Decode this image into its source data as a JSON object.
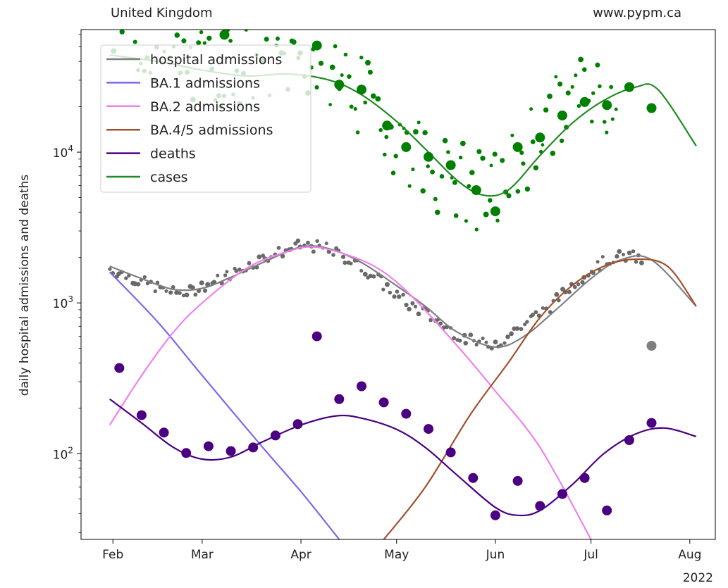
{
  "header": {
    "left_title": "United Kingdom",
    "right_title": "www.pypm.ca"
  },
  "chart_data": {
    "type": "line",
    "ylabel": "daily hospital admissions and deaths",
    "yscale": "log",
    "ylim": [
      27,
      65000
    ],
    "xlim": [
      "2022-01-22",
      "2022-08-09"
    ],
    "year_label": "2022",
    "x_ticks": [
      {
        "label": "Feb",
        "date": "2022-02-01"
      },
      {
        "label": "Mar",
        "date": "2022-03-01"
      },
      {
        "label": "Apr",
        "date": "2022-04-01"
      },
      {
        "label": "May",
        "date": "2022-05-01"
      },
      {
        "label": "Jun",
        "date": "2022-06-01"
      },
      {
        "label": "Jul",
        "date": "2022-07-01"
      },
      {
        "label": "Aug",
        "date": "2022-08-01"
      }
    ],
    "y_ticks": [
      {
        "base": "10",
        "exp": "2",
        "value": 100
      },
      {
        "base": "10",
        "exp": "3",
        "value": 1000
      },
      {
        "base": "10",
        "exp": "4",
        "value": 10000
      }
    ],
    "legend": {
      "position": "upper-left",
      "entries": [
        {
          "label": "hospital admissions",
          "color": "#808080"
        },
        {
          "label": "BA.1 admissions",
          "color": "#7b68ee"
        },
        {
          "label": "BA.2 admissions",
          "color": "#ee82ee"
        },
        {
          "label": "BA.4/5 admissions",
          "color": "#a0522d"
        },
        {
          "label": "deaths",
          "color": "#4b0082"
        },
        {
          "label": "cases",
          "color": "#228b22"
        }
      ]
    },
    "series": [
      {
        "name": "hospital admissions",
        "kind": "line",
        "color": "#808080",
        "points": [
          [
            "2022-01-31",
            1750
          ],
          [
            "2022-02-10",
            1450
          ],
          [
            "2022-02-20",
            1230
          ],
          [
            "2022-03-01",
            1250
          ],
          [
            "2022-03-10",
            1480
          ],
          [
            "2022-03-20",
            1850
          ],
          [
            "2022-04-01",
            2350
          ],
          [
            "2022-04-10",
            2280
          ],
          [
            "2022-04-20",
            1850
          ],
          [
            "2022-05-01",
            1300
          ],
          [
            "2022-05-10",
            950
          ],
          [
            "2022-05-20",
            640
          ],
          [
            "2022-06-01",
            510
          ],
          [
            "2022-06-10",
            600
          ],
          [
            "2022-06-20",
            900
          ],
          [
            "2022-07-01",
            1450
          ],
          [
            "2022-07-10",
            1920
          ],
          [
            "2022-07-20",
            1930
          ],
          [
            "2022-08-03",
            950
          ]
        ]
      },
      {
        "name": "BA.1 admissions",
        "kind": "line",
        "color": "#7b68ee",
        "points": [
          [
            "2022-01-31",
            1600
          ],
          [
            "2022-02-15",
            750
          ],
          [
            "2022-03-01",
            330
          ],
          [
            "2022-03-20",
            110
          ],
          [
            "2022-04-01",
            56
          ],
          [
            "2022-04-13",
            27
          ]
        ]
      },
      {
        "name": "BA.2 admissions",
        "kind": "line",
        "color": "#ee82ee",
        "points": [
          [
            "2022-01-31",
            155
          ],
          [
            "2022-02-10",
            330
          ],
          [
            "2022-02-20",
            640
          ],
          [
            "2022-03-01",
            1000
          ],
          [
            "2022-03-15",
            1700
          ],
          [
            "2022-03-28",
            2200
          ],
          [
            "2022-04-05",
            2350
          ],
          [
            "2022-04-15",
            2100
          ],
          [
            "2022-04-25",
            1700
          ],
          [
            "2022-05-05",
            1150
          ],
          [
            "2022-05-20",
            520
          ],
          [
            "2022-06-01",
            260
          ],
          [
            "2022-06-15",
            110
          ],
          [
            "2022-07-01",
            27
          ]
        ]
      },
      {
        "name": "BA.4/5 admissions",
        "kind": "line",
        "color": "#a0522d",
        "points": [
          [
            "2022-04-27",
            27
          ],
          [
            "2022-05-10",
            60
          ],
          [
            "2022-05-24",
            180
          ],
          [
            "2022-06-05",
            400
          ],
          [
            "2022-06-15",
            800
          ],
          [
            "2022-06-25",
            1300
          ],
          [
            "2022-07-05",
            1750
          ],
          [
            "2022-07-15",
            1950
          ],
          [
            "2022-07-25",
            1750
          ],
          [
            "2022-08-03",
            950
          ]
        ]
      },
      {
        "name": "deaths",
        "kind": "line",
        "color": "#4b0082",
        "points": [
          [
            "2022-01-31",
            230
          ],
          [
            "2022-02-10",
            160
          ],
          [
            "2022-02-20",
            110
          ],
          [
            "2022-03-01",
            92
          ],
          [
            "2022-03-10",
            95
          ],
          [
            "2022-03-20",
            120
          ],
          [
            "2022-04-01",
            155
          ],
          [
            "2022-04-12",
            178
          ],
          [
            "2022-04-20",
            172
          ],
          [
            "2022-05-01",
            145
          ],
          [
            "2022-05-10",
            110
          ],
          [
            "2022-05-20",
            72
          ],
          [
            "2022-06-01",
            44
          ],
          [
            "2022-06-08",
            39
          ],
          [
            "2022-06-15",
            42
          ],
          [
            "2022-06-25",
            62
          ],
          [
            "2022-07-05",
            100
          ],
          [
            "2022-07-15",
            135
          ],
          [
            "2022-07-24",
            148
          ],
          [
            "2022-08-03",
            130
          ]
        ]
      },
      {
        "name": "cases",
        "kind": "line",
        "color": "#228b22",
        "points": [
          [
            "2022-01-31",
            44000
          ],
          [
            "2022-02-15",
            40000
          ],
          [
            "2022-03-01",
            35000
          ],
          [
            "2022-03-15",
            32000
          ],
          [
            "2022-03-28",
            33000
          ],
          [
            "2022-04-10",
            30000
          ],
          [
            "2022-04-20",
            24000
          ],
          [
            "2022-05-01",
            16000
          ],
          [
            "2022-05-10",
            10500
          ],
          [
            "2022-05-20",
            6500
          ],
          [
            "2022-05-28",
            5200
          ],
          [
            "2022-06-05",
            5600
          ],
          [
            "2022-06-15",
            9500
          ],
          [
            "2022-06-25",
            15500
          ],
          [
            "2022-07-05",
            22000
          ],
          [
            "2022-07-15",
            27000
          ],
          [
            "2022-07-22",
            26000
          ],
          [
            "2022-08-03",
            11000
          ]
        ]
      }
    ],
    "weekly_points": [
      {
        "name": "cases weekly",
        "color": "#008000",
        "points": [
          [
            "2022-03-08",
            60000
          ],
          [
            "2022-04-06",
            51000
          ],
          [
            "2022-04-13",
            28000
          ],
          [
            "2022-04-20",
            26000
          ],
          [
            "2022-04-28",
            15000
          ],
          [
            "2022-05-04",
            10800
          ],
          [
            "2022-05-11",
            9300
          ],
          [
            "2022-05-18",
            8200
          ],
          [
            "2022-05-26",
            5600
          ],
          [
            "2022-06-01",
            4050
          ],
          [
            "2022-06-08",
            10800
          ],
          [
            "2022-06-15",
            12500
          ],
          [
            "2022-06-22",
            17500
          ],
          [
            "2022-06-29",
            21500
          ],
          [
            "2022-07-06",
            20500
          ],
          [
            "2022-07-13",
            27000
          ],
          [
            "2022-07-20",
            19600
          ]
        ]
      },
      {
        "name": "deaths weekly",
        "color": "#4b0082",
        "points": [
          [
            "2022-02-03",
            370
          ],
          [
            "2022-02-10",
            180
          ],
          [
            "2022-02-17",
            138
          ],
          [
            "2022-02-24",
            101
          ],
          [
            "2022-03-03",
            112
          ],
          [
            "2022-03-10",
            104
          ],
          [
            "2022-03-17",
            110
          ],
          [
            "2022-03-24",
            132
          ],
          [
            "2022-03-31",
            157
          ],
          [
            "2022-04-06",
            600
          ],
          [
            "2022-04-13",
            230
          ],
          [
            "2022-04-20",
            280
          ],
          [
            "2022-04-27",
            219
          ],
          [
            "2022-05-04",
            184
          ],
          [
            "2022-05-11",
            146
          ],
          [
            "2022-05-18",
            102
          ],
          [
            "2022-05-25",
            69
          ],
          [
            "2022-06-01",
            39
          ],
          [
            "2022-06-08",
            66
          ],
          [
            "2022-06-15",
            45
          ],
          [
            "2022-06-22",
            54
          ],
          [
            "2022-06-29",
            69
          ],
          [
            "2022-07-06",
            42
          ],
          [
            "2022-07-13",
            123
          ],
          [
            "2022-07-20",
            160
          ]
        ]
      },
      {
        "name": "hospital weekly",
        "color": "#808080",
        "points": [
          [
            "2022-07-20",
            520
          ]
        ]
      }
    ],
    "scatter_daily": [
      {
        "name": "hospital daily",
        "color": "#696969",
        "noise": 0.04,
        "points": [
          [
            "2022-01-31",
            1680
          ],
          [
            "2022-02-05",
            1530
          ],
          [
            "2022-02-10",
            1380
          ],
          [
            "2022-02-15",
            1270
          ],
          [
            "2022-02-20",
            1170
          ],
          [
            "2022-02-25",
            1180
          ],
          [
            "2022-03-01",
            1300
          ],
          [
            "2022-03-05",
            1380
          ],
          [
            "2022-03-10",
            1550
          ],
          [
            "2022-03-15",
            1750
          ],
          [
            "2022-03-20",
            1980
          ],
          [
            "2022-03-25",
            2150
          ],
          [
            "2022-03-30",
            2350
          ],
          [
            "2022-04-04",
            2400
          ],
          [
            "2022-04-09",
            2280
          ],
          [
            "2022-04-14",
            2050
          ],
          [
            "2022-04-19",
            1780
          ],
          [
            "2022-04-24",
            1500
          ],
          [
            "2022-04-29",
            1220
          ],
          [
            "2022-05-04",
            1000
          ],
          [
            "2022-05-09",
            880
          ],
          [
            "2022-05-14",
            760
          ],
          [
            "2022-05-19",
            640
          ],
          [
            "2022-05-24",
            560
          ],
          [
            "2022-05-29",
            530
          ],
          [
            "2022-06-03",
            560
          ],
          [
            "2022-06-08",
            680
          ],
          [
            "2022-06-13",
            800
          ],
          [
            "2022-06-18",
            950
          ],
          [
            "2022-06-23",
            1200
          ],
          [
            "2022-06-28",
            1500
          ],
          [
            "2022-07-03",
            1750
          ],
          [
            "2022-07-08",
            2000
          ],
          [
            "2022-07-13",
            2050
          ],
          [
            "2022-07-18",
            1900
          ]
        ]
      },
      {
        "name": "cases daily",
        "color": "#008000",
        "noise": 0.28,
        "points": [
          [
            "2022-01-31",
            60000
          ],
          [
            "2022-02-04",
            58000
          ],
          [
            "2022-02-08",
            56000
          ],
          [
            "2022-02-12",
            52000
          ],
          [
            "2022-02-16",
            48000
          ],
          [
            "2022-02-20",
            42000
          ],
          [
            "2022-02-25",
            38000
          ],
          [
            "2022-03-02",
            36000
          ],
          [
            "2022-03-06",
            38000
          ],
          [
            "2022-03-14",
            40000
          ],
          [
            "2022-03-22",
            40000
          ],
          [
            "2022-03-30",
            42000
          ],
          [
            "2022-04-06",
            41000
          ],
          [
            "2022-04-11",
            38000
          ],
          [
            "2022-04-16",
            30000
          ],
          [
            "2022-04-21",
            22000
          ],
          [
            "2022-04-26",
            17000
          ],
          [
            "2022-05-01",
            13000
          ],
          [
            "2022-05-06",
            10500
          ],
          [
            "2022-05-11",
            8500
          ],
          [
            "2022-05-16",
            6800
          ],
          [
            "2022-05-21",
            6500
          ],
          [
            "2022-05-26",
            5500
          ],
          [
            "2022-05-31",
            5200
          ],
          [
            "2022-06-05",
            7000
          ],
          [
            "2022-06-10",
            10000
          ],
          [
            "2022-06-15",
            14000
          ],
          [
            "2022-06-20",
            17000
          ],
          [
            "2022-06-25",
            22000
          ],
          [
            "2022-06-30",
            26000
          ],
          [
            "2022-07-05",
            24000
          ],
          [
            "2022-07-10",
            30000
          ]
        ]
      }
    ]
  }
}
